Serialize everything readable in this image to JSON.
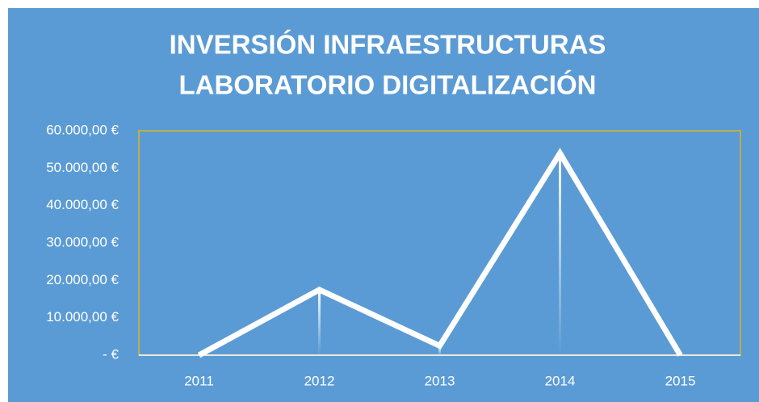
{
  "chart_data": {
    "type": "line",
    "title": [
      "INVERSIÓN INFRAESTRUCTURAS",
      "LABORATORIO DIGITALIZACIÓN"
    ],
    "categories": [
      "2011",
      "2012",
      "2013",
      "2014",
      "2015"
    ],
    "series": [
      {
        "color": "#ffffff",
        "values": [
          0,
          17500,
          2500,
          54000,
          0
        ]
      }
    ],
    "ylim": [
      0,
      60000
    ],
    "yticks": [
      {
        "value": 0,
        "label": "-   €"
      },
      {
        "value": 10000,
        "label": "10.000,00 €"
      },
      {
        "value": 20000,
        "label": "20.000,00 €"
      },
      {
        "value": 30000,
        "label": "30.000,00 €"
      },
      {
        "value": 40000,
        "label": "40.000,00 €"
      },
      {
        "value": 50000,
        "label": "50.000,00 €"
      },
      {
        "value": 60000,
        "label": "60.000,00 €"
      }
    ],
    "grid": false,
    "drop_lines": true,
    "background": "#5b9bd5",
    "plot_border": "#e0b41c"
  }
}
